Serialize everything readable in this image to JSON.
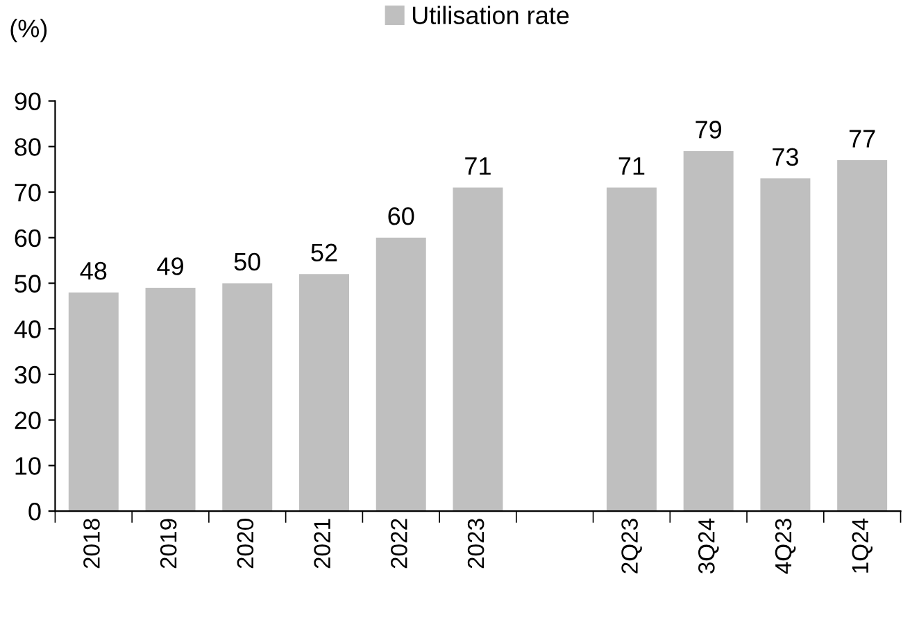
{
  "chart_data": {
    "type": "bar",
    "ylabel": "(%)",
    "categories": [
      "2018",
      "2019",
      "2020",
      "2021",
      "2022",
      "2023",
      null,
      "2Q23",
      "3Q24",
      "4Q23",
      "1Q24"
    ],
    "series": [
      {
        "name": "Utilisation rate",
        "color": "#bfbfbf",
        "values": [
          48,
          49,
          50,
          52,
          60,
          71,
          null,
          71,
          79,
          73,
          77
        ]
      }
    ],
    "ylim": [
      0,
      90
    ],
    "yticks": [
      0,
      10,
      20,
      30,
      40,
      50,
      60,
      70,
      80,
      90
    ],
    "data_labels": true,
    "legend": "top",
    "grid": false
  }
}
